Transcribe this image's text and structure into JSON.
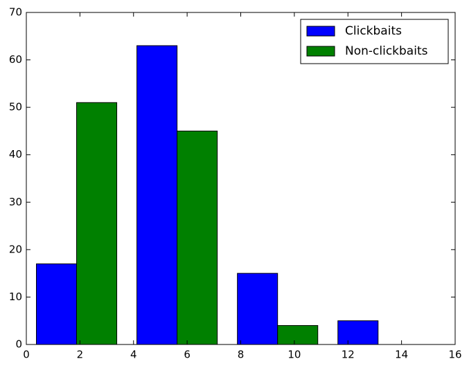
{
  "chart_data": {
    "type": "histogram",
    "bins": [
      0,
      3.75,
      7.5,
      11.25,
      15
    ],
    "series": [
      {
        "name": "Clickbaits",
        "color": "#0000ff",
        "values": [
          17,
          63,
          15,
          5
        ]
      },
      {
        "name": "Non-clickbaits",
        "color": "#008000",
        "values": [
          51,
          45,
          4,
          0
        ]
      }
    ],
    "xlim": [
      0,
      16
    ],
    "xticks": [
      0,
      2,
      4,
      6,
      8,
      10,
      12,
      14,
      16
    ],
    "ylim": [
      0,
      70
    ],
    "yticks": [
      0,
      10,
      20,
      30,
      40,
      50,
      60,
      70
    ],
    "legend": "upper right"
  }
}
